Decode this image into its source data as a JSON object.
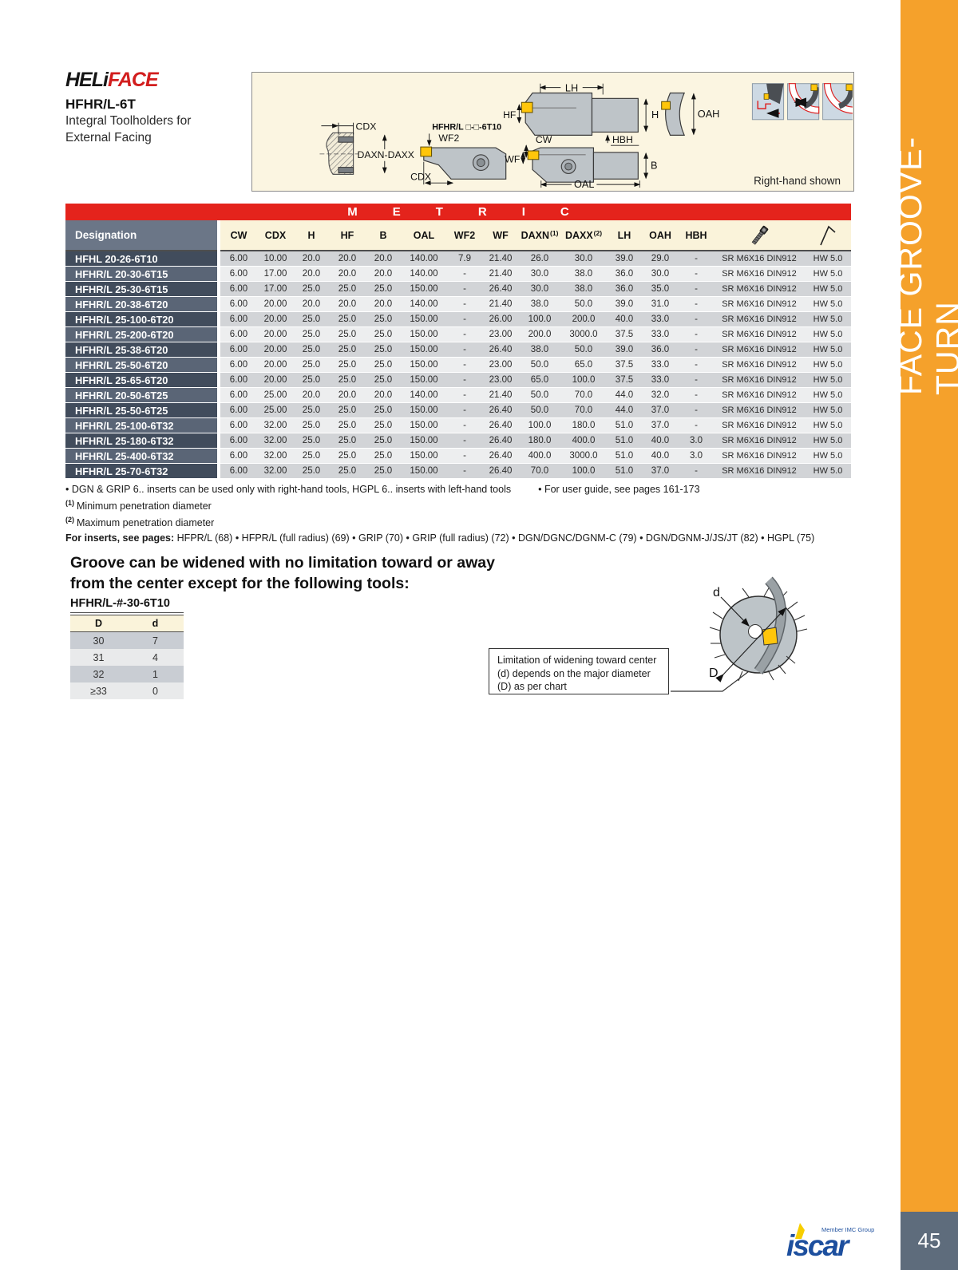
{
  "page": {
    "number": "45",
    "sidebar_label": "FACE GROOVE-TURN"
  },
  "header": {
    "logo_black": "HELi",
    "logo_red": "FACE",
    "title": "HFHR/L-6T",
    "subtitle_line1": "Integral Toolholders for",
    "subtitle_line2": "External Facing"
  },
  "diagram": {
    "labels": {
      "cdx_left": "CDX",
      "daxn_daxx": "DAXN-DAXX",
      "tool_code": "HFHR/L □-□-6T10",
      "wf2": "WF2",
      "cdx_mid": "CDX",
      "lh": "LH",
      "hf": "HF",
      "h": "H",
      "oah": "OAH",
      "hbh": "HBH",
      "cw": "CW",
      "wf": "WF",
      "b": "B",
      "oal": "OAL"
    },
    "caption": "Right-hand shown"
  },
  "metric_label": "METRIC",
  "table": {
    "headers": [
      "Designation",
      "CW",
      "CDX",
      "H",
      "HF",
      "B",
      "OAL",
      "WF2",
      "WF",
      "DAXN",
      "DAXX",
      "LH",
      "OAH",
      "HBH"
    ],
    "sup1": "(1)",
    "sup2": "(2)",
    "screw_icon": "socket-head-screw",
    "key_icon": "hex-key",
    "rows": [
      {
        "d": "HFHL 20-26-6T10",
        "v": [
          "6.00",
          "10.00",
          "20.0",
          "20.0",
          "20.0",
          "140.00",
          "7.9",
          "21.40",
          "26.0",
          "30.0",
          "39.0",
          "29.0",
          "-"
        ],
        "s": "SR M6X16 DIN912",
        "k": "HW 5.0"
      },
      {
        "d": "HFHR/L 20-30-6T15",
        "v": [
          "6.00",
          "17.00",
          "20.0",
          "20.0",
          "20.0",
          "140.00",
          "-",
          "21.40",
          "30.0",
          "38.0",
          "36.0",
          "30.0",
          "-"
        ],
        "s": "SR M6X16 DIN912",
        "k": "HW 5.0"
      },
      {
        "d": "HFHR/L 25-30-6T15",
        "v": [
          "6.00",
          "17.00",
          "25.0",
          "25.0",
          "25.0",
          "150.00",
          "-",
          "26.40",
          "30.0",
          "38.0",
          "36.0",
          "35.0",
          "-"
        ],
        "s": "SR M6X16 DIN912",
        "k": "HW 5.0"
      },
      {
        "d": "HFHR/L 20-38-6T20",
        "v": [
          "6.00",
          "20.00",
          "20.0",
          "20.0",
          "20.0",
          "140.00",
          "-",
          "21.40",
          "38.0",
          "50.0",
          "39.0",
          "31.0",
          "-"
        ],
        "s": "SR M6X16 DIN912",
        "k": "HW 5.0"
      },
      {
        "d": "HFHR/L 25-100-6T20",
        "v": [
          "6.00",
          "20.00",
          "25.0",
          "25.0",
          "25.0",
          "150.00",
          "-",
          "26.00",
          "100.0",
          "200.0",
          "40.0",
          "33.0",
          "-"
        ],
        "s": "SR M6X16 DIN912",
        "k": "HW 5.0"
      },
      {
        "d": "HFHR/L 25-200-6T20",
        "v": [
          "6.00",
          "20.00",
          "25.0",
          "25.0",
          "25.0",
          "150.00",
          "-",
          "23.00",
          "200.0",
          "3000.0",
          "37.5",
          "33.0",
          "-"
        ],
        "s": "SR M6X16 DIN912",
        "k": "HW 5.0"
      },
      {
        "d": "HFHR/L 25-38-6T20",
        "v": [
          "6.00",
          "20.00",
          "25.0",
          "25.0",
          "25.0",
          "150.00",
          "-",
          "26.40",
          "38.0",
          "50.0",
          "39.0",
          "36.0",
          "-"
        ],
        "s": "SR M6X16 DIN912",
        "k": "HW 5.0"
      },
      {
        "d": "HFHR/L 25-50-6T20",
        "v": [
          "6.00",
          "20.00",
          "25.0",
          "25.0",
          "25.0",
          "150.00",
          "-",
          "23.00",
          "50.0",
          "65.0",
          "37.5",
          "33.0",
          "-"
        ],
        "s": "SR M6X16 DIN912",
        "k": "HW 5.0"
      },
      {
        "d": "HFHR/L 25-65-6T20",
        "v": [
          "6.00",
          "20.00",
          "25.0",
          "25.0",
          "25.0",
          "150.00",
          "-",
          "23.00",
          "65.0",
          "100.0",
          "37.5",
          "33.0",
          "-"
        ],
        "s": "SR M6X16 DIN912",
        "k": "HW 5.0"
      },
      {
        "d": "HFHR/L 20-50-6T25",
        "v": [
          "6.00",
          "25.00",
          "20.0",
          "20.0",
          "20.0",
          "140.00",
          "-",
          "21.40",
          "50.0",
          "70.0",
          "44.0",
          "32.0",
          "-"
        ],
        "s": "SR M6X16 DIN912",
        "k": "HW 5.0"
      },
      {
        "d": "HFHR/L 25-50-6T25",
        "v": [
          "6.00",
          "25.00",
          "25.0",
          "25.0",
          "25.0",
          "150.00",
          "-",
          "26.40",
          "50.0",
          "70.0",
          "44.0",
          "37.0",
          "-"
        ],
        "s": "SR M6X16 DIN912",
        "k": "HW 5.0"
      },
      {
        "d": "HFHR/L 25-100-6T32",
        "v": [
          "6.00",
          "32.00",
          "25.0",
          "25.0",
          "25.0",
          "150.00",
          "-",
          "26.40",
          "100.0",
          "180.0",
          "51.0",
          "37.0",
          "-"
        ],
        "s": "SR M6X16 DIN912",
        "k": "HW 5.0"
      },
      {
        "d": "HFHR/L 25-180-6T32",
        "v": [
          "6.00",
          "32.00",
          "25.0",
          "25.0",
          "25.0",
          "150.00",
          "-",
          "26.40",
          "180.0",
          "400.0",
          "51.0",
          "40.0",
          "3.0"
        ],
        "s": "SR M6X16 DIN912",
        "k": "HW 5.0"
      },
      {
        "d": "HFHR/L 25-400-6T32",
        "v": [
          "6.00",
          "32.00",
          "25.0",
          "25.0",
          "25.0",
          "150.00",
          "-",
          "26.40",
          "400.0",
          "3000.0",
          "51.0",
          "40.0",
          "3.0"
        ],
        "s": "SR M6X16 DIN912",
        "k": "HW 5.0"
      },
      {
        "d": "HFHR/L 25-70-6T32",
        "v": [
          "6.00",
          "32.00",
          "25.0",
          "25.0",
          "25.0",
          "150.00",
          "-",
          "26.40",
          "70.0",
          "100.0",
          "51.0",
          "37.0",
          "-"
        ],
        "s": "SR M6X16 DIN912",
        "k": "HW 5.0"
      }
    ]
  },
  "notes": {
    "note1a": "•  DGN & GRIP 6.. inserts can be used only with right-hand tools, HGPL 6.. inserts with left-hand tools",
    "note1b": "•  For user guide, see pages 161-173",
    "fn1_sup": "(1)",
    "fn1": "Minimum penetration diameter",
    "fn2_sup": "(2)",
    "fn2": "Maximum penetration diameter",
    "inserts_label": "For inserts, see pages:",
    "inserts_items": [
      "HFPR/L (68)",
      "HFPR/L (full radius) (69)",
      "GRIP (70)",
      "GRIP (full radius) (72)",
      "DGN/DGNC/DGNM-C (79)",
      "DGN/DGNM-J/JS/JT (82)",
      "HGPL (75)"
    ]
  },
  "groove_section": {
    "heading": "Groove can be widened with no limitation toward or away from the center except for the following tools:",
    "tool_label": "HFHR/L-#-30-6T10",
    "dd_headers": [
      "D",
      "d"
    ],
    "dd_rows": [
      [
        "30",
        "7"
      ],
      [
        "31",
        "4"
      ],
      [
        "32",
        "1"
      ],
      [
        "≥33",
        "0"
      ]
    ]
  },
  "limitation_note": "Limitation of widening toward center (d) depends on the major diameter (D) as per chart",
  "circle_diagram": {
    "label_small": "d",
    "label_big": "D"
  },
  "footer": {
    "member": "Member IMC Group",
    "brand": "iscar"
  },
  "colors": {
    "accent_orange": "#F5A12B",
    "metric_red": "#E4231C",
    "slate": "#5E6C7C",
    "insert_yellow": "#FFC60B",
    "brand_blue": "#1D4F9E"
  }
}
